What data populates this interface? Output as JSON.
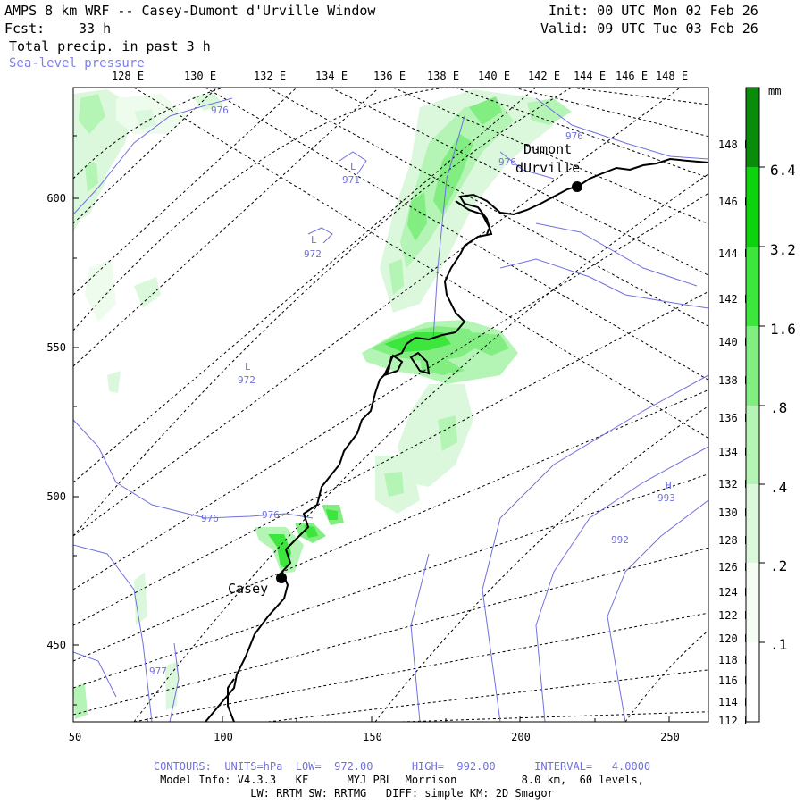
{
  "header": {
    "title": "AMPS 8 km WRF -- Casey-Dumont d'Urville Window",
    "forecast_label": "Fcst:",
    "forecast_hours": "33 h",
    "init": "Init: 00 UTC Mon 02 Feb 26",
    "valid": "Valid: 09 UTC Tue 03 Feb 26",
    "field": "Total precip. in past 3 h",
    "overlay": "Sea-level pressure"
  },
  "top_longitudes": [
    "128 E",
    "130 E",
    "132 E",
    "134 E",
    "136 E",
    "138 E",
    "140 E",
    "142 E",
    "144 E",
    "146 E",
    "148 E"
  ],
  "right_longitudes": [
    "148 E",
    "146 E",
    "144 E",
    "142 E",
    "140 E",
    "138 E",
    "136 E",
    "134 E",
    "132 E",
    "130 E",
    "128 E",
    "126 E",
    "124 E",
    "122 E",
    "120 E",
    "118 E",
    "116 E",
    "114 E",
    "112 E"
  ],
  "left_ticks": [
    "600",
    "550",
    "500",
    "450"
  ],
  "bottom_ticks": [
    "50",
    "100",
    "150",
    "200",
    "250"
  ],
  "colorbar": {
    "unit": "mm",
    "levels": [
      "6.4",
      "3.2",
      "1.6",
      ".8",
      ".4",
      ".2",
      ".1"
    ],
    "colors": [
      "#0a8c0a",
      "#0fd20f",
      "#3ce63c",
      "#82ee82",
      "#b4f4b4",
      "#dcf8dc",
      "#f4fcf4",
      "#ffffff"
    ]
  },
  "stations": [
    {
      "name": "Casey",
      "label": "Casey"
    },
    {
      "name": "Dumont d'Urville",
      "label1": "Dumont",
      "label2": "dUrville"
    }
  ],
  "pressure_labels": [
    "976",
    "L",
    "971",
    "L",
    "972",
    "L",
    "972",
    "976",
    "976",
    "976",
    "976",
    "H",
    "993",
    "992",
    "977"
  ],
  "footer": {
    "contours": "CONTOURS:  UNITS=hPa  LOW=  972.00      HIGH=  992.00      INTERVAL=   4.0000",
    "model_info": "Model Info: V4.3.3   KF      MYJ PBL  Morrison          8.0 km,  60 levels,",
    "physics": "LW: RRTM SW: RRTMG   DIFF: simple KM: 2D Smagor"
  }
}
